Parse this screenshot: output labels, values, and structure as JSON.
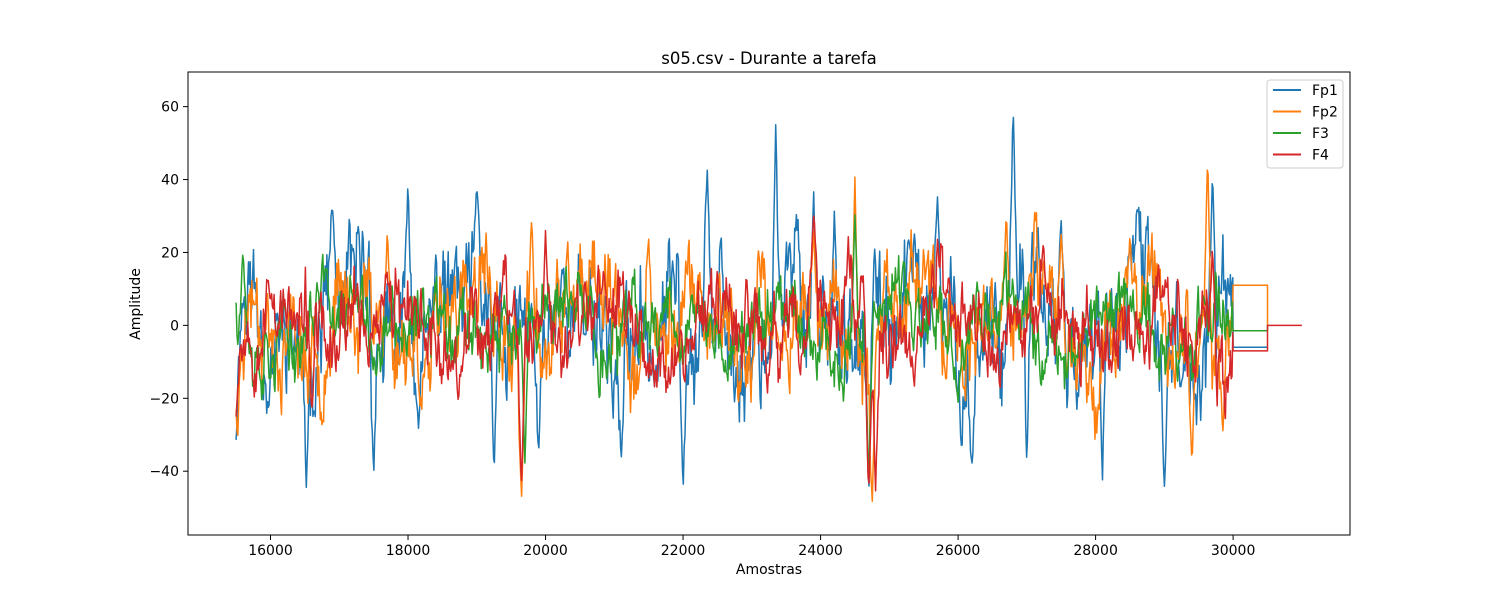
{
  "chart_data": {
    "type": "line",
    "title": "s05.csv - Durante a tarefa",
    "xlabel": "Amostras",
    "ylabel": "Amplitude",
    "xlim": [
      14800,
      31700
    ],
    "ylim": [
      -57.5,
      69.5
    ],
    "xticks": [
      16000,
      18000,
      20000,
      22000,
      24000,
      26000,
      28000,
      30000
    ],
    "yticks": [
      -40,
      -20,
      0,
      20,
      40,
      60
    ],
    "xtick_labels": [
      "16000",
      "18000",
      "20000",
      "22000",
      "24000",
      "26000",
      "28000",
      "30000"
    ],
    "ytick_labels": [
      "−40",
      "−20",
      "0",
      "20",
      "40",
      "60"
    ],
    "grid": false,
    "legend_position": "top-right",
    "series": [
      {
        "name": "Fp1",
        "color": "#1f77b4",
        "signal": {
          "x_start": 15500,
          "x_end": 30000,
          "amplitude": 14,
          "seed": 11
        },
        "tail": [
          [
            30000,
            -6
          ],
          [
            30500,
            -6
          ]
        ],
        "peaks": [
          [
            15500,
            -33
          ],
          [
            16520,
            -47
          ],
          [
            16900,
            34
          ],
          [
            17500,
            -44
          ],
          [
            18000,
            44
          ],
          [
            19000,
            38
          ],
          [
            19250,
            -43
          ],
          [
            19900,
            -38
          ],
          [
            21100,
            -40
          ],
          [
            22000,
            -49
          ],
          [
            22350,
            47
          ],
          [
            23350,
            61
          ],
          [
            23900,
            39
          ],
          [
            24200,
            33
          ],
          [
            24700,
            -50
          ],
          [
            25700,
            36
          ],
          [
            26200,
            -41
          ],
          [
            26800,
            64
          ],
          [
            27000,
            -42
          ],
          [
            27500,
            30
          ],
          [
            28100,
            -45
          ],
          [
            28600,
            32
          ],
          [
            29000,
            -46
          ],
          [
            29700,
            45
          ]
        ]
      },
      {
        "name": "Fp2",
        "color": "#ff7f0e",
        "signal": {
          "x_start": 15500,
          "x_end": 30000,
          "amplitude": 12,
          "seed": 23
        },
        "tail": [
          [
            30000,
            11
          ],
          [
            30500,
            11
          ],
          [
            30500,
            0
          ]
        ],
        "peaks": [
          [
            15520,
            -35
          ],
          [
            17700,
            28
          ],
          [
            19650,
            -50
          ],
          [
            19800,
            32
          ],
          [
            21500,
            25
          ],
          [
            23100,
            24
          ],
          [
            23900,
            27
          ],
          [
            24500,
            43
          ],
          [
            24750,
            -52
          ],
          [
            25500,
            24
          ],
          [
            26700,
            31
          ],
          [
            27500,
            26
          ],
          [
            28500,
            26
          ],
          [
            29400,
            -39
          ],
          [
            29630,
            52
          ],
          [
            29850,
            -31
          ]
        ]
      },
      {
        "name": "F3",
        "color": "#2ca02c",
        "signal": {
          "x_start": 15500,
          "x_end": 30000,
          "amplitude": 9,
          "seed": 37
        },
        "tail": [
          [
            30000,
            -1.5
          ],
          [
            30500,
            -1.5
          ],
          [
            30500,
            0
          ]
        ],
        "peaks": [
          [
            15600,
            21
          ],
          [
            16800,
            16
          ],
          [
            19700,
            -40
          ],
          [
            24500,
            32
          ],
          [
            24700,
            -48
          ],
          [
            26000,
            -22
          ]
        ]
      },
      {
        "name": "F4",
        "color": "#d62728",
        "signal": {
          "x_start": 15500,
          "x_end": 30000,
          "amplitude": 10,
          "seed": 53
        },
        "tail": [
          [
            30000,
            -7
          ],
          [
            30500,
            -7
          ],
          [
            30500,
            0
          ],
          [
            31000,
            0
          ]
        ],
        "peaks": [
          [
            15500,
            -26
          ],
          [
            16600,
            -24
          ],
          [
            19650,
            -46
          ],
          [
            20000,
            28
          ],
          [
            23900,
            31
          ],
          [
            24700,
            -49
          ],
          [
            24800,
            -48
          ],
          [
            29700,
            24
          ]
        ]
      }
    ]
  }
}
